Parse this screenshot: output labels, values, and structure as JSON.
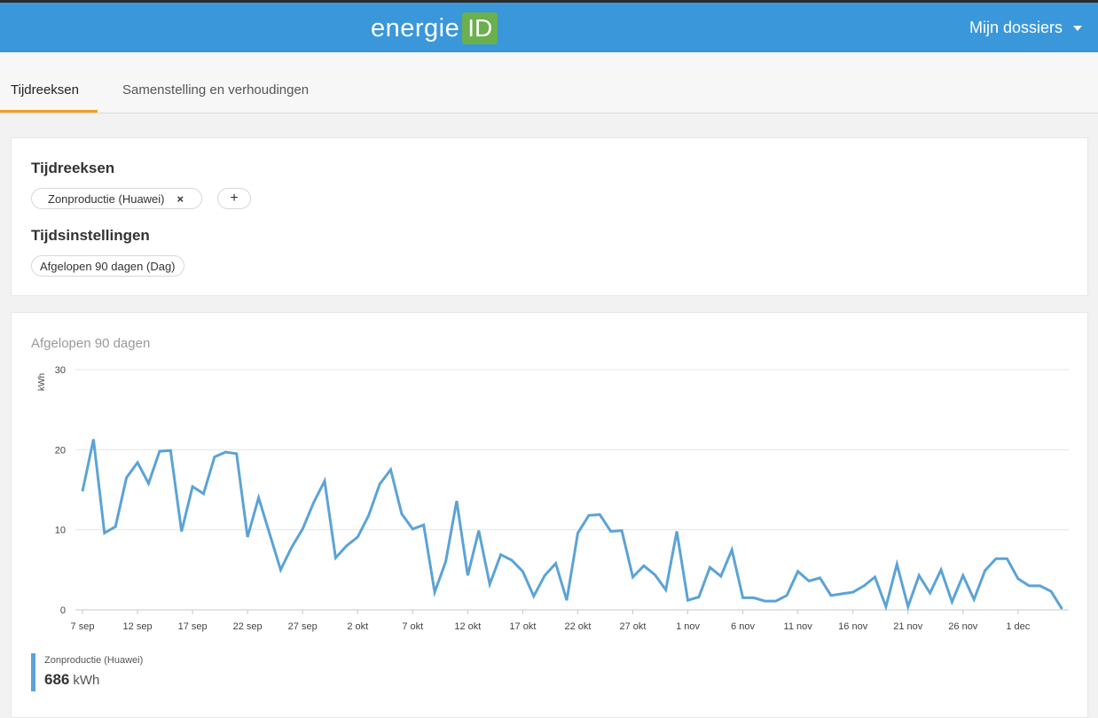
{
  "header": {
    "logo_text": "energie",
    "logo_box": "ID",
    "menu_label": "Mijn dossiers"
  },
  "tabs": [
    {
      "label": "Tijdreeksen",
      "active": true
    },
    {
      "label": "Samenstelling en verhoudingen",
      "active": false
    }
  ],
  "settings": {
    "series_title": "Tijdreeksen",
    "series_pill": "Zonproductie (Huawei)",
    "remove_glyph": "×",
    "add_glyph": "+",
    "time_title": "Tijdsinstellingen",
    "time_pill": "Afgelopen 90 dagen (Dag)"
  },
  "legend": {
    "name": "Zonproductie (Huawei)",
    "total": "686",
    "unit": "kWh",
    "color": "#5ba3d6"
  },
  "chart_data": {
    "type": "line",
    "title": "Afgelopen 90 dagen",
    "ylabel": "kWh",
    "ylim": [
      0,
      30
    ],
    "yticks": [
      0,
      10,
      20,
      30
    ],
    "grid": true,
    "xticks": [
      "7 sep",
      "12 sep",
      "17 sep",
      "22 sep",
      "27 sep",
      "2 okt",
      "7 okt",
      "12 okt",
      "17 okt",
      "22 okt",
      "27 okt",
      "1 nov",
      "6 nov",
      "11 nov",
      "16 nov",
      "21 nov",
      "26 nov",
      "1 dec"
    ],
    "x_start": "7 sep",
    "series": [
      {
        "name": "Zonproductie (Huawei)",
        "color": "#5ba3d6",
        "values": [
          14.8,
          21.3,
          9.6,
          10.4,
          16.5,
          18.4,
          15.8,
          19.8,
          19.9,
          9.8,
          15.4,
          14.5,
          19.1,
          19.7,
          19.5,
          9.1,
          14.0,
          9.5,
          5.0,
          7.8,
          10.1,
          13.4,
          16.1,
          6.5,
          8.0,
          9.1,
          11.8,
          15.7,
          17.5,
          12.0,
          10.1,
          10.6,
          2.2,
          6.0,
          13.6,
          4.3,
          9.9,
          3.2,
          6.9,
          6.2,
          4.8,
          1.7,
          4.3,
          5.8,
          1.2,
          9.6,
          11.8,
          11.9,
          9.8,
          9.9,
          4.1,
          5.5,
          4.4,
          2.5,
          9.8,
          1.2,
          1.6,
          5.3,
          4.2,
          7.5,
          1.5,
          1.5,
          1.1,
          1.1,
          1.8,
          4.8,
          3.6,
          4.0,
          1.8,
          2.0,
          2.2,
          3.0,
          4.1,
          0.4,
          5.7,
          0.4,
          4.3,
          2.1,
          5.0,
          1.0,
          4.3,
          1.3,
          4.9,
          6.4,
          6.4,
          3.9,
          3.0,
          3.0,
          2.3,
          0.1
        ]
      }
    ]
  }
}
